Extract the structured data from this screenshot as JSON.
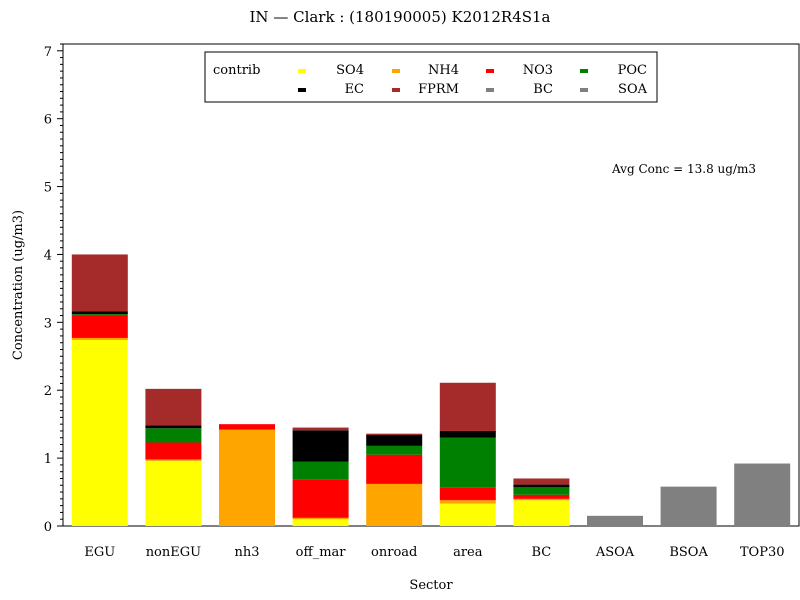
{
  "chart_data": {
    "type": "bar",
    "stacked": true,
    "title": "IN  —  Clark : (180190005) K2012R4S1a",
    "xlabel": "Sector",
    "ylabel": "Concentration (ug/m3)",
    "ylim": [
      0,
      7.1
    ],
    "yticks": [
      0,
      1,
      2,
      3,
      4,
      5,
      6,
      7
    ],
    "grid": false,
    "legend_title": "contrib",
    "legend_position": "top-center",
    "annotation": "Avg Conc  =  13.8 ug/m3",
    "categories": [
      "EGU",
      "nonEGU",
      "nh3",
      "off_mar",
      "onroad",
      "area",
      "BC",
      "ASOA",
      "BSOA",
      "TOP30"
    ],
    "series": [
      {
        "name": "SO4",
        "color": "#ffff00",
        "values": [
          2.74,
          0.96,
          0.0,
          0.1,
          0.0,
          0.33,
          0.38,
          0,
          0,
          0
        ]
      },
      {
        "name": "NH4",
        "color": "#ffa500",
        "values": [
          0.03,
          0.02,
          1.42,
          0.02,
          0.62,
          0.05,
          0.02,
          0,
          0,
          0
        ]
      },
      {
        "name": "NO3",
        "color": "#ff0000",
        "values": [
          0.33,
          0.25,
          0.08,
          0.56,
          0.43,
          0.19,
          0.06,
          0,
          0,
          0
        ]
      },
      {
        "name": "POC",
        "color": "#008000",
        "values": [
          0.02,
          0.21,
          0.0,
          0.27,
          0.13,
          0.73,
          0.11,
          0,
          0,
          0
        ]
      },
      {
        "name": "EC",
        "color": "#000000",
        "values": [
          0.04,
          0.04,
          0.0,
          0.46,
          0.16,
          0.1,
          0.04,
          0,
          0,
          0
        ]
      },
      {
        "name": "FPRM",
        "color": "#a52a2a",
        "values": [
          0.84,
          0.54,
          0.0,
          0.04,
          0.02,
          0.71,
          0.09,
          0,
          0,
          0
        ]
      },
      {
        "name": "BC",
        "color": "#808080",
        "values": [
          0,
          0,
          0,
          0,
          0,
          0,
          0,
          0,
          0,
          0.92
        ]
      },
      {
        "name": "SOA",
        "color": "#808080",
        "values": [
          0,
          0,
          0,
          0,
          0,
          0,
          0,
          0.15,
          0.58,
          0
        ]
      }
    ]
  }
}
